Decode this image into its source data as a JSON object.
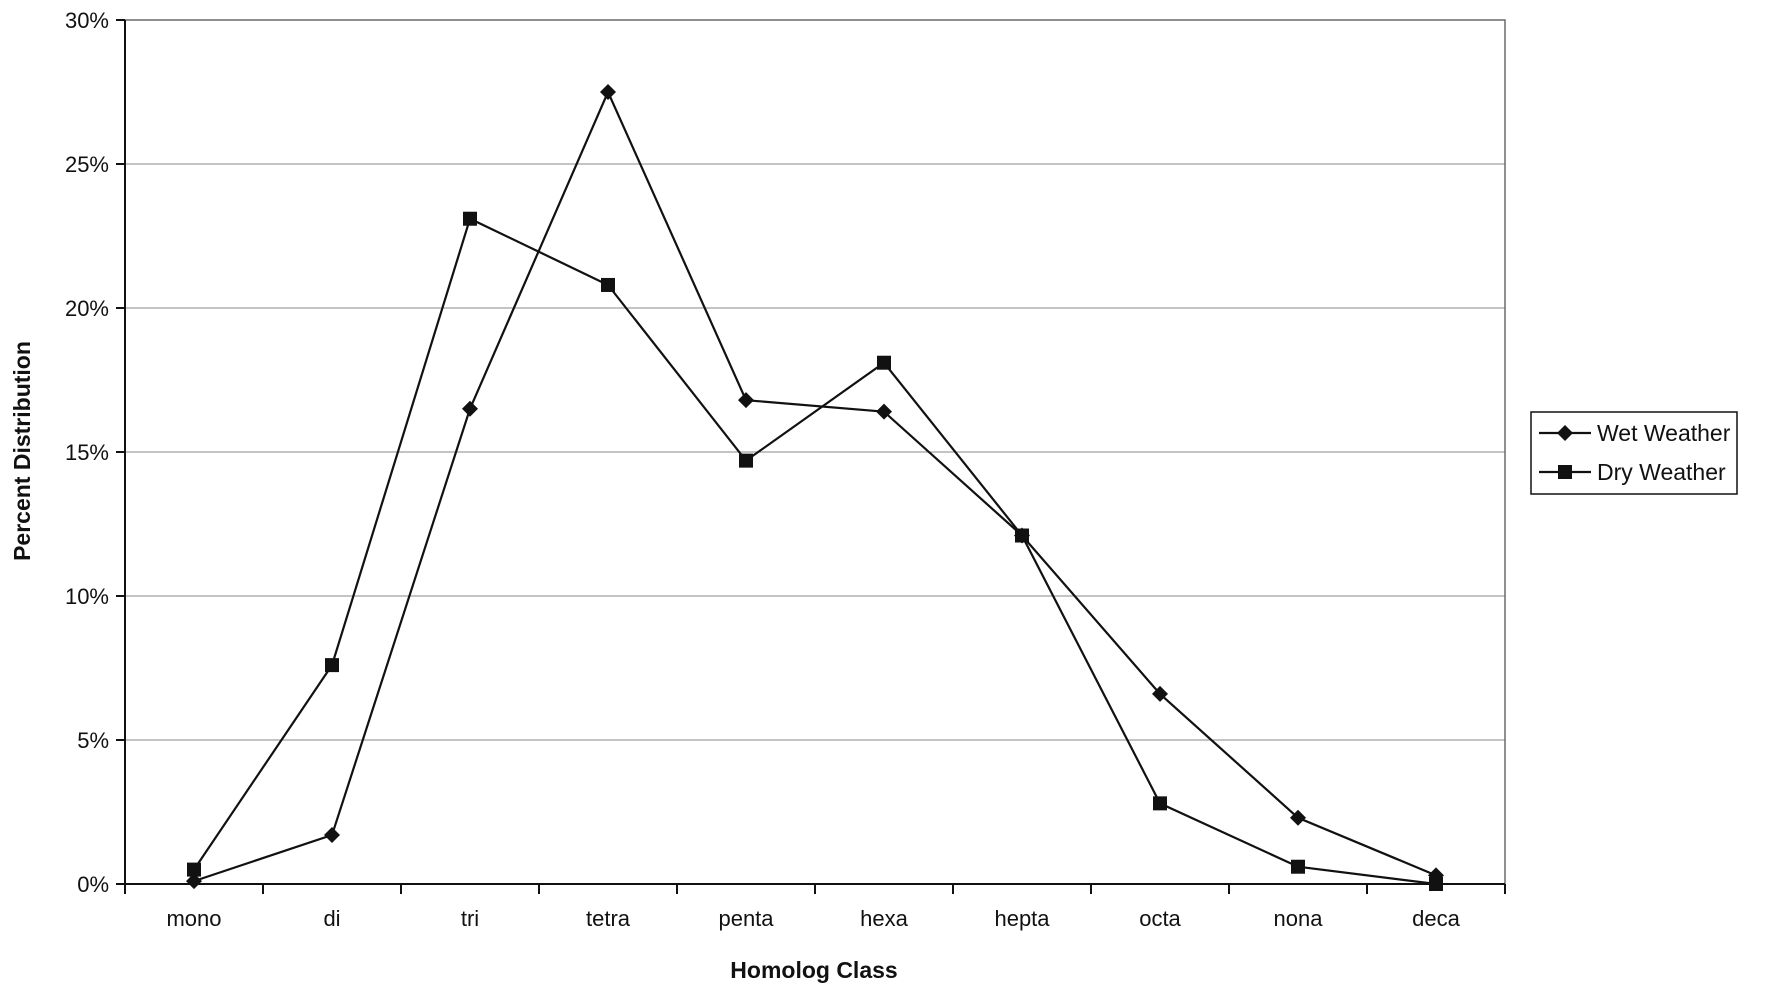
{
  "chart_data": {
    "type": "line",
    "title": "",
    "xlabel": "Homolog Class",
    "ylabel": "Percent Distribution",
    "categories": [
      "mono",
      "di",
      "tri",
      "tetra",
      "penta",
      "hexa",
      "hepta",
      "octa",
      "nona",
      "deca"
    ],
    "ylim": [
      0,
      30
    ],
    "yticks": [
      0,
      5,
      10,
      15,
      20,
      25,
      30
    ],
    "ytick_labels": [
      "0%",
      "5%",
      "10%",
      "15%",
      "20%",
      "25%",
      "30%"
    ],
    "grid": "horizontal",
    "legend": "right",
    "series": [
      {
        "name": "Wet Weather",
        "marker": "diamond",
        "color": "#111111",
        "values": [
          0.1,
          1.7,
          16.5,
          27.5,
          16.8,
          16.4,
          12.1,
          6.6,
          2.3,
          0.3
        ]
      },
      {
        "name": "Dry Weather",
        "marker": "square",
        "color": "#111111",
        "values": [
          0.5,
          7.6,
          23.1,
          20.8,
          14.7,
          18.1,
          12.1,
          2.8,
          0.6,
          0.0
        ]
      }
    ]
  }
}
